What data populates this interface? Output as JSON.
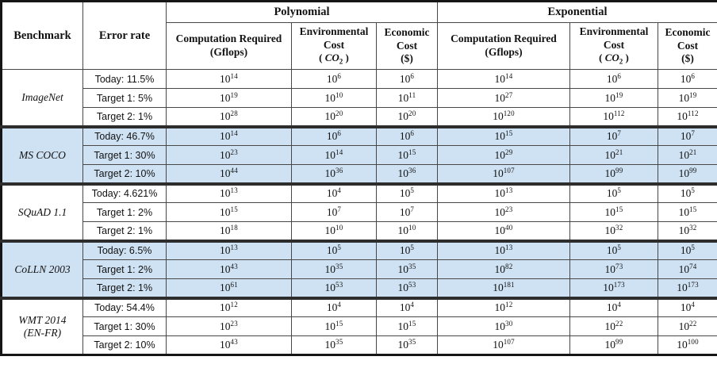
{
  "header": {
    "benchmark": "Benchmark",
    "error_rate": "Error rate",
    "groups": [
      {
        "label": "Polynomial"
      },
      {
        "label": "Exponential"
      }
    ],
    "subcols": {
      "comp_line1": "Computation Required",
      "comp_line2": "(Gflops)",
      "env_line1": "Environmental",
      "env_line2": "Cost",
      "co2_open": "( ",
      "co2_sym": "CO",
      "co2_sub": "2",
      "co2_close": " )",
      "econ_line1": "Economic",
      "econ_line2": "Cost",
      "econ_line3": "($)"
    }
  },
  "notation": {
    "base": "10"
  },
  "colors": {
    "highlight": "#cfe2f3",
    "border_thin": "#474747",
    "border_thick": "#2d2d2d",
    "border_outer": "#161616"
  },
  "benchmarks": [
    {
      "name": "ImageNet",
      "highlight": false,
      "rows": [
        {
          "error": "Today: 11.5%",
          "poly": [
            "14",
            "6",
            "6"
          ],
          "exp": [
            "14",
            "6",
            "6"
          ]
        },
        {
          "error": "Target 1: 5%",
          "poly": [
            "19",
            "10",
            "11"
          ],
          "exp": [
            "27",
            "19",
            "19"
          ]
        },
        {
          "error": "Target 2: 1%",
          "poly": [
            "28",
            "20",
            "20"
          ],
          "exp": [
            "120",
            "112",
            "112"
          ]
        }
      ]
    },
    {
      "name": "MS COCO",
      "highlight": true,
      "rows": [
        {
          "error": "Today: 46.7%",
          "poly": [
            "14",
            "6",
            "6"
          ],
          "exp": [
            "15",
            "7",
            "7"
          ]
        },
        {
          "error": "Target 1: 30%",
          "poly": [
            "23",
            "14",
            "15"
          ],
          "exp": [
            "29",
            "21",
            "21"
          ]
        },
        {
          "error": "Target 2: 10%",
          "poly": [
            "44",
            "36",
            "36"
          ],
          "exp": [
            "107",
            "99",
            "99"
          ]
        }
      ]
    },
    {
      "name": "SQuAD 1.1",
      "highlight": false,
      "rows": [
        {
          "error": "Today: 4.621%",
          "poly": [
            "13",
            "4",
            "5"
          ],
          "exp": [
            "13",
            "5",
            "5"
          ]
        },
        {
          "error": "Target 1: 2%",
          "poly": [
            "15",
            "7",
            "7"
          ],
          "exp": [
            "23",
            "15",
            "15"
          ]
        },
        {
          "error": "Target 2: 1%",
          "poly": [
            "18",
            "10",
            "10"
          ],
          "exp": [
            "40",
            "32",
            "32"
          ]
        }
      ]
    },
    {
      "name": "CoLLN 2003",
      "highlight": true,
      "rows": [
        {
          "error": "Today: 6.5%",
          "poly": [
            "13",
            "5",
            "5"
          ],
          "exp": [
            "13",
            "5",
            "5"
          ]
        },
        {
          "error": "Target 1: 2%",
          "poly": [
            "43",
            "35",
            "35"
          ],
          "exp": [
            "82",
            "73",
            "74"
          ]
        },
        {
          "error": "Target 2: 1%",
          "poly": [
            "61",
            "53",
            "53"
          ],
          "exp": [
            "181",
            "173",
            "173"
          ]
        }
      ]
    },
    {
      "name": "WMT 2014",
      "name2": "(EN-FR)",
      "highlight": false,
      "rows": [
        {
          "error": "Today: 54.4%",
          "poly": [
            "12",
            "4",
            "4"
          ],
          "exp": [
            "12",
            "4",
            "4"
          ]
        },
        {
          "error": "Target 1: 30%",
          "poly": [
            "23",
            "15",
            "15"
          ],
          "exp": [
            "30",
            "22",
            "22"
          ]
        },
        {
          "error": "Target 2: 10%",
          "poly": [
            "43",
            "35",
            "35"
          ],
          "exp": [
            "107",
            "99",
            "100"
          ]
        }
      ]
    }
  ]
}
